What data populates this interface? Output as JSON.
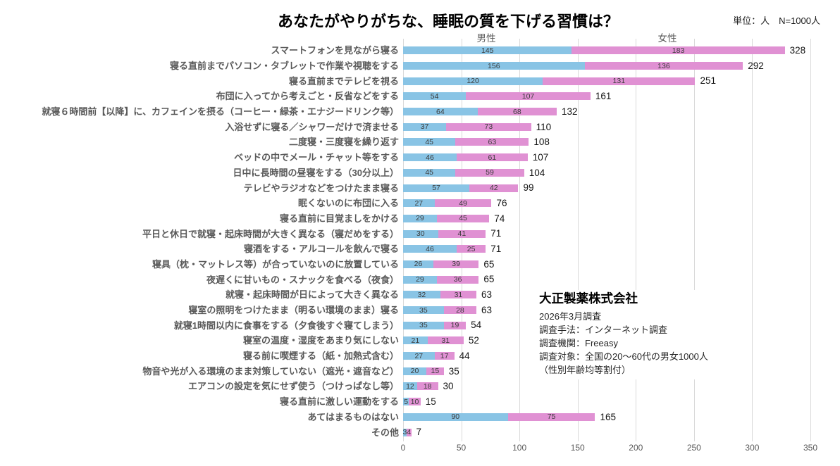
{
  "title": "あなたがやりがちな、睡眠の質を下げる習慣は？",
  "unit_note": "単位：人　N=1000人",
  "group_headers": {
    "male": "男性",
    "female": "女性"
  },
  "colors": {
    "male": "#89c4e5",
    "female": "#e091d3",
    "grid": "#d9d9d9",
    "category_label": "#595959"
  },
  "annotation": {
    "company": "大正製薬株式会社",
    "lines": [
      "2026年3月調査",
      "調査手法：インターネット調査",
      "調査機関：Freeasy",
      "調査対象：全国の20～60代の男女1000人",
      "（性別年齢均等割付）"
    ]
  },
  "chart_data": {
    "type": "bar",
    "orientation": "horizontal",
    "stacked": true,
    "title": "あなたがやりがちな、睡眠の質を下げる習慣は？",
    "xlabel": "",
    "ylabel": "",
    "xlim": [
      0,
      350
    ],
    "x_ticks": [
      0,
      50,
      100,
      150,
      200,
      250,
      300,
      350
    ],
    "grid": true,
    "legend_position": "top",
    "categories": [
      "スマートフォンを見ながら寝る",
      "寝る直前までパソコン・タブレットで作業や視聴をする",
      "寝る直前までテレビを視る",
      "布団に入ってから考えごと・反省などをする",
      "就寝６時間前【以降】に、カフェインを摂る（コーヒー・緑茶・エナジードリンク等）",
      "入浴せずに寝る／シャワーだけで済ませる",
      "二度寝・三度寝を繰り返す",
      "ベッドの中でメール・チャット等をする",
      "日中に長時間の昼寝をする（30分以上）",
      "テレビやラジオなどをつけたまま寝る",
      "眠くないのに布団に入る",
      "寝る直前に目覚ましをかける",
      "平日と休日で就寝・起床時間が大きく異なる（寝だめをする）",
      "寝酒をする・アルコールを飲んで寝る",
      "寝具（枕・マットレス等）が合っていないのに放置している",
      "夜遅くに甘いもの・スナックを食べる（夜食）",
      "就寝・起床時間が日によって大きく異なる",
      "寝室の照明をつけたまま（明るい環境のまま）寝る",
      "就寝1時間以内に食事をする（夕食後すぐ寝てしまう）",
      "寝室の温度・湿度をあまり気にしない",
      "寝る前に喫煙する（紙・加熱式含む）",
      "物音や光が入る環境のまま対策していない（遮光・遮音など）",
      "エアコンの設定を気にせず使う（つけっぱなし等）",
      "寝る直前に激しい運動をする",
      "あてはまるものはない",
      "その他"
    ],
    "series": [
      {
        "name": "男性",
        "values": [
          145,
          156,
          120,
          54,
          64,
          37,
          45,
          46,
          45,
          57,
          27,
          29,
          30,
          46,
          26,
          29,
          32,
          35,
          35,
          21,
          27,
          20,
          12,
          5,
          90,
          3
        ]
      },
      {
        "name": "女性",
        "values": [
          183,
          136,
          131,
          107,
          68,
          73,
          63,
          61,
          59,
          42,
          49,
          45,
          41,
          25,
          39,
          36,
          31,
          28,
          19,
          31,
          17,
          15,
          18,
          10,
          75,
          4
        ]
      }
    ],
    "totals": [
      328,
      292,
      251,
      161,
      132,
      110,
      108,
      107,
      104,
      99,
      76,
      74,
      71,
      71,
      65,
      65,
      63,
      63,
      54,
      52,
      44,
      35,
      30,
      15,
      165,
      7
    ]
  }
}
